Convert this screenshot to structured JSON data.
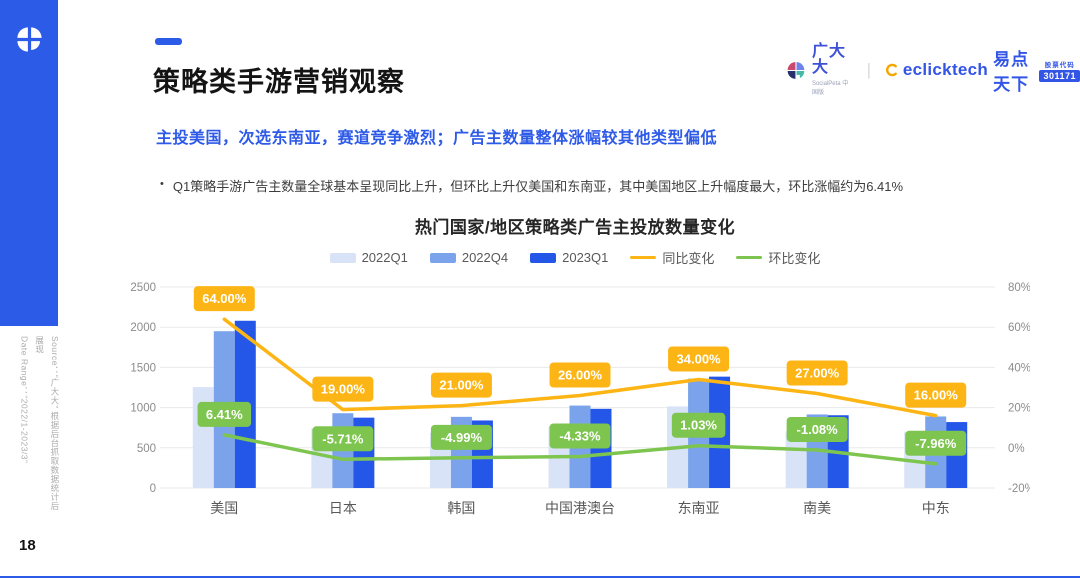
{
  "page": {
    "number": "18",
    "source_lines": [
      "Source：“广大大” 根据后台抓取数据统计后展现",
      "Date Range：“2022/1-2023/3”"
    ]
  },
  "header": {
    "title": "策略类手游营销观察",
    "subtitle": "主投美国，次选东南亚，赛道竞争激烈；广告主数量整体涨幅较其他类型偏低",
    "bullet_marker": "•",
    "bullet": "Q1策略手游广告主数量全球基本呈现同比上升，但环比上升仅美国和东南亚，其中美国地区上升幅度最大，环比涨幅约为6.41%"
  },
  "logos": {
    "guangdada": {
      "name": "广大大",
      "sub": "SocialPeta 中国版"
    },
    "divider": "|",
    "eclicktech": {
      "name_en": "eclicktech",
      "name_cn": "易点天下",
      "stock_label": "股票代码",
      "stock_code": "301171"
    }
  },
  "chart_data": {
    "type": "bar",
    "title": "热门国家/地区策略类广告主投放数量变化",
    "categories": [
      "美国",
      "日本",
      "韩国",
      "中国港澳台",
      "东南亚",
      "南美",
      "中东"
    ],
    "bar_series": [
      {
        "name": "2022Q1",
        "color": "#D9E3F8",
        "values": [
          1255,
          740,
          685,
          765,
          1015,
          705,
          700
        ]
      },
      {
        "name": "2022Q4",
        "color": "#7AA3EB",
        "values": [
          1950,
          930,
          885,
          1025,
          1360,
          915,
          890
        ]
      },
      {
        "name": "2023Q1",
        "color": "#2456E8",
        "values": [
          2080,
          875,
          840,
          985,
          1385,
          905,
          820
        ]
      }
    ],
    "line_series": [
      {
        "name": "同比变化",
        "color": "#FCB515",
        "values": [
          64.0,
          19.0,
          21.0,
          26.0,
          34.0,
          27.0,
          16.0
        ],
        "labels": [
          "64.00%",
          "19.00%",
          "21.00%",
          "26.00%",
          "34.00%",
          "27.00%",
          "16.00%"
        ]
      },
      {
        "name": "环比变化",
        "color": "#7EC550",
        "values": [
          6.41,
          -5.71,
          -4.99,
          -4.33,
          1.03,
          -1.08,
          -7.96
        ],
        "labels": [
          "6.41%",
          "-5.71%",
          "-4.99%",
          "-4.33%",
          "1.03%",
          "-1.08%",
          "-7.96%"
        ]
      }
    ],
    "y_left": {
      "min": 0,
      "max": 2500,
      "ticks": [
        0,
        500,
        1000,
        1500,
        2000,
        2500
      ]
    },
    "y_right": {
      "min": -20,
      "max": 80,
      "tick_labels": [
        "-20%",
        "0%",
        "20%",
        "40%",
        "60%",
        "80%"
      ]
    },
    "legend_position": "top",
    "grid": true
  },
  "theme": {
    "accent_blue": "#2C5BE7",
    "grid_color": "#EAEAEA",
    "axis_text": "#8C8C8C",
    "category_text": "#595959"
  }
}
